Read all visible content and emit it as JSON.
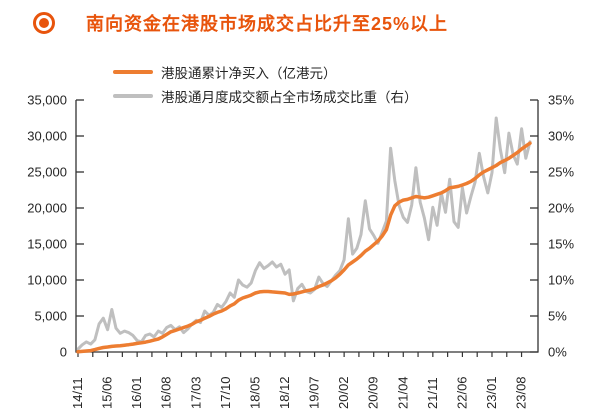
{
  "header": {
    "title": "南向资金在港股市场成交占比升至25%以上",
    "accent_color": "#e8540c"
  },
  "legend": [
    {
      "label": "港股通累计净买入（亿港元）",
      "color": "#ed7d31"
    },
    {
      "label": "港股通月度成交额占全市场成交比重（右）",
      "color": "#bfbfbf"
    }
  ],
  "chart_data": {
    "type": "line",
    "title": "南向资金在港股市场成交占比升至25%以上",
    "x_axis": {
      "unit": "year/month, monthly from 2014/11 to 2023/10",
      "tick_labels": [
        "14/11",
        "15/06",
        "16/01",
        "16/08",
        "17/03",
        "17/10",
        "18/05",
        "18/12",
        "19/07",
        "20/02",
        "20/09",
        "21/04",
        "21/11",
        "22/06",
        "23/01",
        "23/08"
      ],
      "label_every_n_months": 7
    },
    "left_axis": {
      "min": 0,
      "max": 35000,
      "step": 5000,
      "tick_labels": [
        "0",
        "5,000",
        "10,000",
        "15,000",
        "20,000",
        "25,000",
        "30,000",
        "35,000"
      ]
    },
    "right_axis": {
      "min": 0,
      "max": 35,
      "step": 5,
      "tick_labels": [
        "0%",
        "5%",
        "10%",
        "15%",
        "20%",
        "25%",
        "30%",
        "35%"
      ]
    },
    "grid": false,
    "legend_position": "top",
    "axis_color": "#333333",
    "tick_text_color": "#262626",
    "series": [
      {
        "name": "港股通月度成交额占全市场成交比重（右）",
        "axis": "right",
        "color": "#bfbfbf",
        "stroke_width": 3,
        "values": [
          0.4,
          1.0,
          1.4,
          1.1,
          1.7,
          3.9,
          4.7,
          3.1,
          5.9,
          3.3,
          2.6,
          2.9,
          2.7,
          2.3,
          1.6,
          1.4,
          2.3,
          2.5,
          2.1,
          2.9,
          2.6,
          3.4,
          3.7,
          3.1,
          3.5,
          2.7,
          3.2,
          3.9,
          4.4,
          4.1,
          5.7,
          5.1,
          5.5,
          6.6,
          6.2,
          7.0,
          8.2,
          7.6,
          10.0,
          9.3,
          9.0,
          9.6,
          11.3,
          12.4,
          11.6,
          12.0,
          12.5,
          11.8,
          12.2,
          10.8,
          11.4,
          7.1,
          8.8,
          9.4,
          8.4,
          8.2,
          8.7,
          10.4,
          9.5,
          9.1,
          9.9,
          10.7,
          11.3,
          12.8,
          18.5,
          13.6,
          14.4,
          16.3,
          21.0,
          17.1,
          16.2,
          15.1,
          16.6,
          18.2,
          28.3,
          23.8,
          20.4,
          18.7,
          18.0,
          20.4,
          25.6,
          20.8,
          18.6,
          15.6,
          20.1,
          17.6,
          22.1,
          19.4,
          24.0,
          18.1,
          17.3,
          22.8,
          19.3,
          21.6,
          23.6,
          27.6,
          24.4,
          22.1,
          24.9,
          32.5,
          28.1,
          24.9,
          30.4,
          27.4,
          26.1,
          31.0,
          26.9,
          29.2
        ]
      },
      {
        "name": "港股通累计净买入（亿港元）",
        "axis": "left",
        "color": "#ed7d31",
        "stroke_width": 3.5,
        "values": [
          30,
          90,
          140,
          200,
          330,
          500,
          620,
          700,
          780,
          830,
          880,
          950,
          1020,
          1100,
          1200,
          1280,
          1380,
          1500,
          1650,
          1800,
          2100,
          2450,
          2800,
          3000,
          3200,
          3400,
          3600,
          3850,
          4200,
          4400,
          4700,
          4950,
          5250,
          5500,
          5700,
          6000,
          6400,
          6700,
          7200,
          7500,
          7700,
          7900,
          8200,
          8350,
          8400,
          8400,
          8350,
          8300,
          8250,
          8200,
          8000,
          8050,
          8200,
          8350,
          8500,
          8600,
          8800,
          9100,
          9300,
          9600,
          9900,
          10300,
          10800,
          11400,
          12100,
          12500,
          12900,
          13400,
          14000,
          14400,
          14900,
          15400,
          16100,
          17000,
          19000,
          20300,
          20800,
          21100,
          21200,
          21400,
          21600,
          21500,
          21400,
          21500,
          21700,
          21900,
          22100,
          22400,
          22800,
          22900,
          23000,
          23200,
          23400,
          23700,
          24100,
          24600,
          25000,
          25300,
          25600,
          25900,
          26300,
          26600,
          26900,
          27300,
          27700,
          28200,
          28600,
          29000
        ]
      }
    ]
  }
}
